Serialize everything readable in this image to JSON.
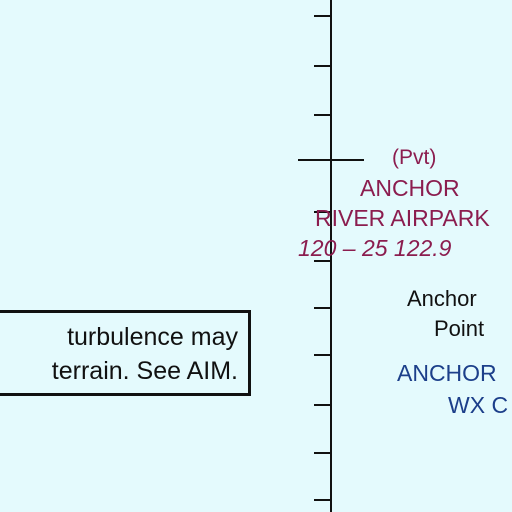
{
  "airport": {
    "type": "(Pvt)",
    "name_line1": "ANCHOR",
    "name_line2": "RIVER AIRPARK",
    "frequencies": "120 – 25 122.9"
  },
  "waypoint": {
    "name_line1": "Anchor",
    "name_line2": "Point"
  },
  "weather": {
    "line1": "ANCHOR",
    "line2": "WX C"
  },
  "notice": {
    "line1": "turbulence may",
    "line2": "terrain. See AIM."
  },
  "colors": {
    "background": "#e4fafd",
    "airport_text": "#8b1d4f",
    "weather_text": "#1c3f8a",
    "ink": "#111111"
  }
}
